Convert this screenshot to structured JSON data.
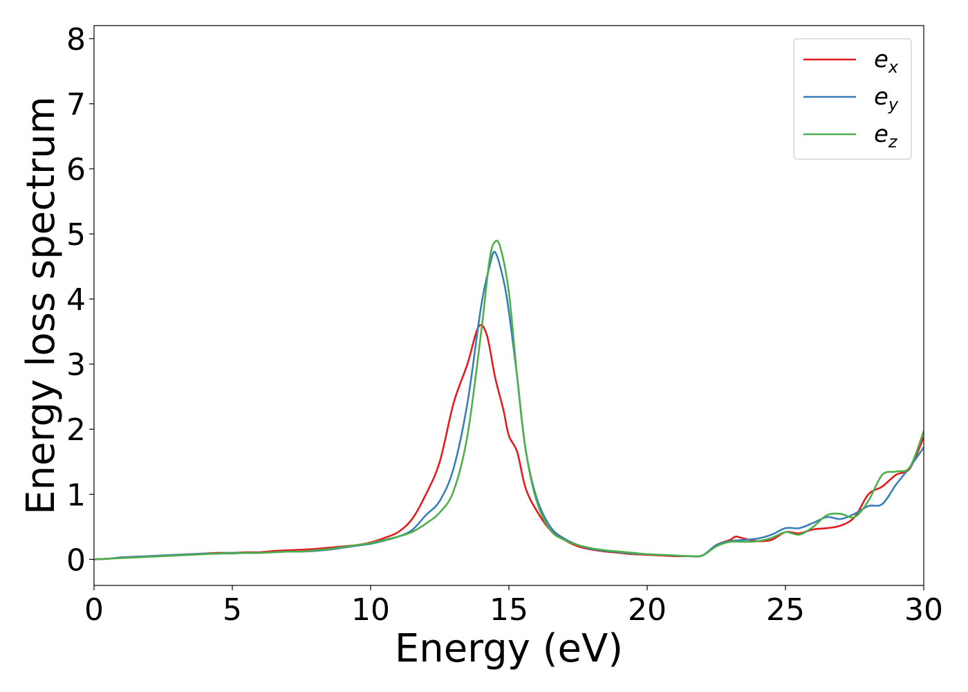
{
  "chart_data": {
    "type": "line",
    "title": "",
    "xlabel": "Energy (eV)",
    "ylabel": "Energy loss spectrum",
    "xlim": [
      0,
      30
    ],
    "ylim": [
      -0.4,
      8.2
    ],
    "xticks": [
      0,
      5,
      10,
      15,
      20,
      25,
      30
    ],
    "yticks": [
      0,
      1,
      2,
      3,
      4,
      5,
      6,
      7,
      8
    ],
    "grid": false,
    "legend_position": "top-right",
    "series": [
      {
        "name": "e_x",
        "label_main": "e",
        "label_sub": "x",
        "color": "#e41a1c",
        "x": [
          0,
          0.5,
          1,
          1.5,
          2,
          2.5,
          3,
          3.5,
          4,
          4.5,
          5,
          5.5,
          6,
          6.5,
          7,
          7.5,
          8,
          8.5,
          9,
          9.5,
          10,
          10.5,
          11,
          11.5,
          12,
          12.5,
          13,
          13.5,
          13.9,
          14.2,
          14.5,
          14.8,
          15,
          15.3,
          15.6,
          16,
          16.5,
          17,
          17.5,
          18,
          18.5,
          19,
          19.5,
          20,
          20.5,
          21,
          21.5,
          22,
          22.5,
          23,
          23.2,
          23.5,
          24,
          24.5,
          25,
          25.5,
          26,
          26.5,
          27,
          27.5,
          28,
          28.5,
          29,
          29.5,
          30
        ],
        "values": [
          0,
          0.01,
          0.03,
          0.04,
          0.05,
          0.06,
          0.07,
          0.08,
          0.09,
          0.1,
          0.1,
          0.11,
          0.11,
          0.13,
          0.14,
          0.15,
          0.16,
          0.18,
          0.2,
          0.22,
          0.26,
          0.33,
          0.42,
          0.62,
          1.0,
          1.5,
          2.4,
          3.0,
          3.57,
          3.45,
          2.8,
          2.3,
          1.9,
          1.65,
          1.1,
          0.75,
          0.45,
          0.3,
          0.2,
          0.15,
          0.12,
          0.1,
          0.08,
          0.07,
          0.06,
          0.05,
          0.05,
          0.06,
          0.22,
          0.3,
          0.35,
          0.32,
          0.28,
          0.3,
          0.42,
          0.4,
          0.46,
          0.48,
          0.52,
          0.65,
          1.0,
          1.12,
          1.3,
          1.4,
          1.88
        ]
      },
      {
        "name": "e_y",
        "label_main": "e",
        "label_sub": "y",
        "color": "#377eb8",
        "x": [
          0,
          0.5,
          1,
          1.5,
          2,
          2.5,
          3,
          3.5,
          4,
          4.5,
          5,
          5.5,
          6,
          6.5,
          7,
          7.5,
          8,
          8.5,
          9,
          9.5,
          10,
          10.5,
          11,
          11.5,
          12,
          12.5,
          13,
          13.5,
          14,
          14.3,
          14.5,
          14.8,
          15,
          15.3,
          15.6,
          16,
          16.5,
          17,
          17.5,
          18,
          18.5,
          19,
          19.5,
          20,
          20.5,
          21,
          21.5,
          22,
          22.5,
          23,
          23.5,
          24,
          24.5,
          25,
          25.5,
          26,
          26.5,
          27,
          27.5,
          28,
          28.5,
          29,
          29.5,
          30
        ],
        "values": [
          0,
          0.01,
          0.03,
          0.04,
          0.05,
          0.06,
          0.07,
          0.08,
          0.09,
          0.09,
          0.1,
          0.1,
          0.1,
          0.11,
          0.12,
          0.12,
          0.13,
          0.15,
          0.18,
          0.21,
          0.24,
          0.29,
          0.35,
          0.45,
          0.68,
          0.9,
          1.4,
          2.4,
          3.9,
          4.5,
          4.72,
          4.3,
          3.8,
          2.8,
          1.7,
          0.95,
          0.5,
          0.32,
          0.22,
          0.16,
          0.13,
          0.11,
          0.09,
          0.08,
          0.07,
          0.06,
          0.05,
          0.06,
          0.22,
          0.28,
          0.3,
          0.32,
          0.38,
          0.48,
          0.48,
          0.56,
          0.65,
          0.62,
          0.7,
          0.82,
          0.85,
          1.15,
          1.42,
          1.72
        ]
      },
      {
        "name": "e_z",
        "label_main": "e",
        "label_sub": "z",
        "color": "#4daf4a",
        "x": [
          0,
          0.5,
          1,
          1.5,
          2,
          2.5,
          3,
          3.5,
          4,
          4.5,
          5,
          5.5,
          6,
          6.5,
          7,
          7.5,
          8,
          8.5,
          9,
          9.5,
          10,
          10.5,
          11,
          11.5,
          12,
          12.5,
          13,
          13.5,
          14,
          14.3,
          14.5,
          14.7,
          15,
          15.3,
          15.6,
          16,
          16.5,
          17,
          17.5,
          18,
          18.5,
          19,
          19.5,
          20,
          20.5,
          21,
          21.5,
          22,
          22.5,
          23,
          23.5,
          24,
          24.5,
          25,
          25.5,
          26,
          26.5,
          27,
          27.5,
          28,
          28.5,
          29,
          29.5,
          30
        ],
        "values": [
          0,
          0.01,
          0.02,
          0.03,
          0.04,
          0.05,
          0.06,
          0.07,
          0.08,
          0.09,
          0.09,
          0.1,
          0.1,
          0.11,
          0.12,
          0.12,
          0.14,
          0.16,
          0.19,
          0.22,
          0.25,
          0.3,
          0.35,
          0.42,
          0.55,
          0.72,
          1.05,
          1.9,
          3.5,
          4.6,
          4.88,
          4.78,
          4.1,
          2.8,
          1.7,
          0.9,
          0.45,
          0.3,
          0.22,
          0.17,
          0.14,
          0.12,
          0.1,
          0.08,
          0.07,
          0.06,
          0.05,
          0.06,
          0.2,
          0.27,
          0.27,
          0.28,
          0.33,
          0.42,
          0.38,
          0.5,
          0.68,
          0.7,
          0.65,
          0.9,
          1.3,
          1.35,
          1.42,
          1.97
        ]
      }
    ]
  }
}
